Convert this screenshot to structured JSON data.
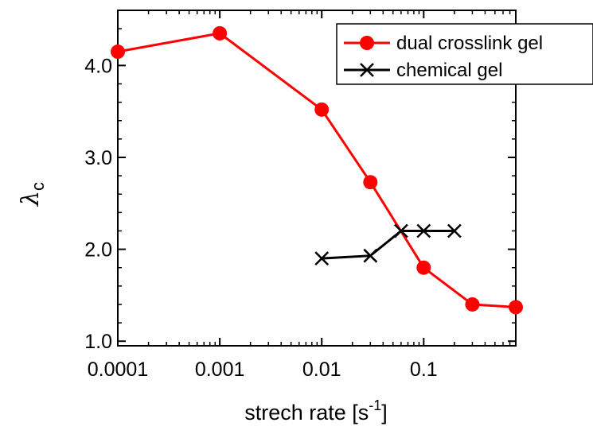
{
  "chart_data": {
    "type": "line",
    "xscale": "log",
    "xlim": [
      0.0001,
      0.8
    ],
    "ylim": [
      0.95,
      4.6
    ],
    "xlabel": "strech rate [s",
    "xlabel_superscript": "-1",
    "xlabel_suffix": "]",
    "ylabel": "λ",
    "ylabel_subscript": "c",
    "xticks": [
      {
        "value": 0.0001,
        "label": "0.0001"
      },
      {
        "value": 0.001,
        "label": "0.001"
      },
      {
        "value": 0.01,
        "label": "0.01"
      },
      {
        "value": 0.1,
        "label": "0.1"
      }
    ],
    "yticks": [
      {
        "value": 1.0,
        "label": "1.0"
      },
      {
        "value": 2.0,
        "label": "2.0"
      },
      {
        "value": 3.0,
        "label": "3.0"
      },
      {
        "value": 4.0,
        "label": "4.0"
      }
    ],
    "grid": false,
    "legend_position": "top-right",
    "series": [
      {
        "name": "dual crosslink gel",
        "color": "#ff0000",
        "marker": "circle",
        "x": [
          0.0001,
          0.001,
          0.01,
          0.03,
          0.1,
          0.3,
          0.8
        ],
        "y": [
          4.15,
          4.35,
          3.52,
          2.73,
          1.8,
          1.4,
          1.37
        ]
      },
      {
        "name": "chemical gel",
        "color": "#000000",
        "marker": "x",
        "x": [
          0.01,
          0.03,
          0.06,
          0.1,
          0.2
        ],
        "y": [
          1.9,
          1.93,
          2.2,
          2.2,
          2.2
        ]
      }
    ]
  }
}
